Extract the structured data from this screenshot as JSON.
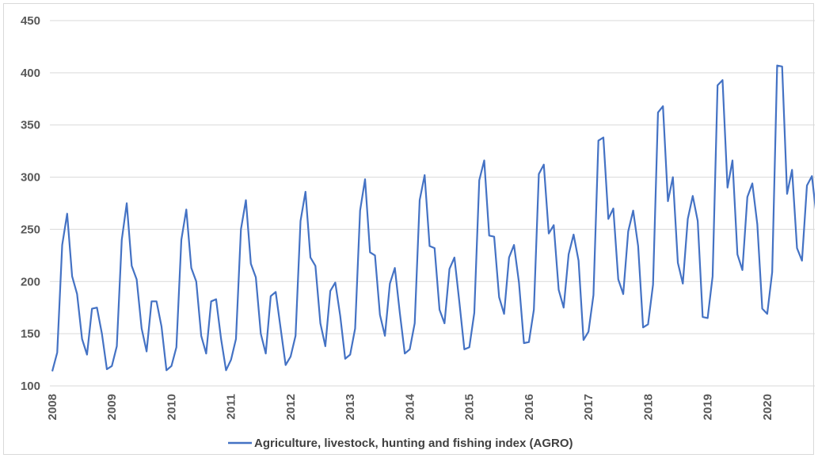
{
  "chart_data": {
    "type": "line",
    "title": "",
    "xlabel": "",
    "ylabel": "",
    "ylim": [
      100,
      450
    ],
    "yticks": [
      "100",
      "150",
      "200",
      "250",
      "300",
      "350",
      "400",
      "450"
    ],
    "xticks": [
      "2008",
      "2009",
      "2010",
      "2011",
      "2012",
      "2013",
      "2014",
      "2015",
      "2016",
      "2017",
      "2018",
      "2019",
      "2020"
    ],
    "grid": "horizontal",
    "legend_position": "bottom",
    "colors": {
      "series": "#4472c4",
      "grid": "#d9d9d9",
      "text": "#595959"
    },
    "series": [
      {
        "name": "Agriculture, livestock, hunting and fishing index (AGRO)",
        "start": "2008-01",
        "frequency": "monthly",
        "values": [
          114,
          132,
          235,
          265,
          205,
          188,
          145,
          130,
          174,
          175,
          150,
          116,
          119,
          138,
          240,
          275,
          215,
          202,
          155,
          133,
          181,
          181,
          157,
          115,
          119,
          137,
          240,
          269,
          213,
          200,
          148,
          131,
          181,
          183,
          145,
          115,
          125,
          145,
          250,
          278,
          217,
          204,
          150,
          131,
          186,
          190,
          155,
          120,
          128,
          148,
          258,
          286,
          223,
          215,
          160,
          138,
          191,
          199,
          167,
          126,
          130,
          155,
          268,
          298,
          228,
          225,
          168,
          148,
          198,
          213,
          170,
          131,
          135,
          160,
          278,
          302,
          234,
          232,
          173,
          160,
          212,
          223,
          180,
          135,
          137,
          170,
          297,
          316,
          244,
          243,
          185,
          169,
          223,
          235,
          199,
          141,
          142,
          173,
          303,
          312,
          246,
          254,
          192,
          175,
          226,
          245,
          220,
          144,
          152,
          187,
          335,
          338,
          260,
          270,
          202,
          188,
          248,
          268,
          234,
          156,
          159,
          197,
          362,
          368,
          277,
          300,
          218,
          198,
          260,
          282,
          258,
          166,
          165,
          205,
          388,
          393,
          290,
          316,
          226,
          211,
          281,
          294,
          255,
          174,
          169,
          209,
          407,
          406,
          284,
          307,
          232,
          220,
          292,
          301,
          259
        ]
      }
    ]
  }
}
